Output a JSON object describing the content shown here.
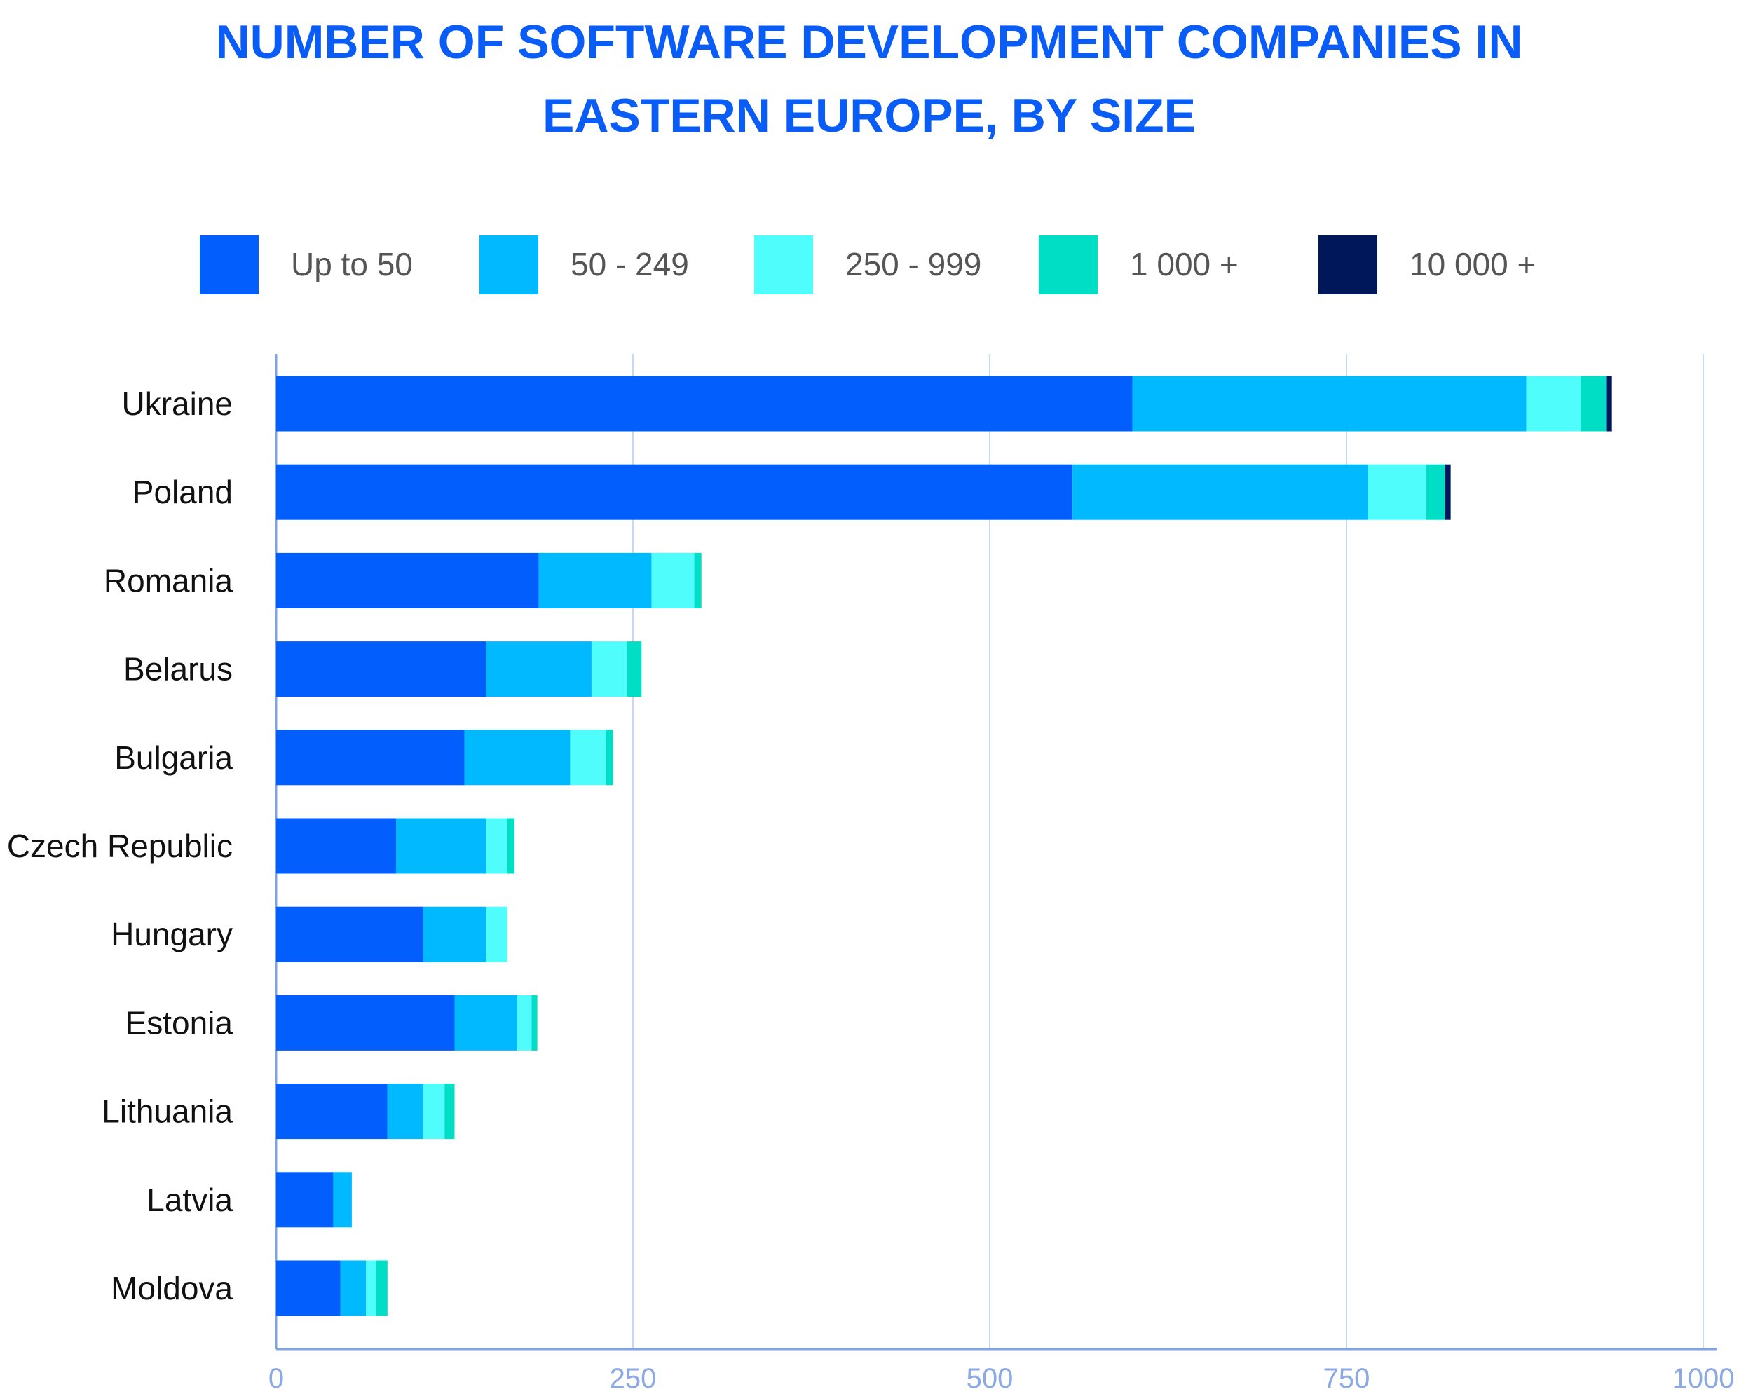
{
  "chart_data": {
    "type": "bar",
    "orientation": "horizontal",
    "stacked": true,
    "title": "NUMBER OF SOFTWARE DEVELOPMENT COMPANIES IN EASTERN EUROPE, BY SIZE",
    "title_lines": [
      "NUMBER OF SOFTWARE DEVELOPMENT COMPANIES IN",
      "EASTERN EUROPE, BY SIZE"
    ],
    "xlabel": "",
    "ylabel": "",
    "xlim": [
      0,
      1000
    ],
    "xticks": [
      "0",
      "250",
      "500",
      "750",
      "1000"
    ],
    "grid": "vertical",
    "legend_position": "top",
    "categories": [
      "Ukraine",
      "Poland",
      "Romania",
      "Belarus",
      "Bulgaria",
      "Czech Republic",
      "Hungary",
      "Estonia",
      "Lithuania",
      "Latvia",
      "Moldova"
    ],
    "series": [
      {
        "name": "Up to 50",
        "color": "#025ffe",
        "values": [
          600,
          558,
          184,
          147,
          132,
          84,
          103,
          125,
          78,
          40,
          45
        ]
      },
      {
        "name": "50 - 249",
        "color": "#00b9fe",
        "values": [
          276,
          207,
          79,
          74,
          74,
          63,
          44,
          44,
          25,
          13,
          18
        ]
      },
      {
        "name": "250 - 999",
        "color": "#50fdfd",
        "values": [
          38,
          41,
          30,
          25,
          25,
          15,
          15,
          10,
          15,
          0,
          7
        ]
      },
      {
        "name": "1 000 +",
        "color": "#00dec5",
        "values": [
          18,
          13,
          5,
          10,
          5,
          5,
          0,
          4,
          7,
          0,
          8
        ]
      },
      {
        "name": "10 000 +",
        "color": "#00175a",
        "values": [
          4,
          4,
          0,
          0,
          0,
          0,
          0,
          0,
          0,
          0,
          0
        ]
      }
    ]
  }
}
